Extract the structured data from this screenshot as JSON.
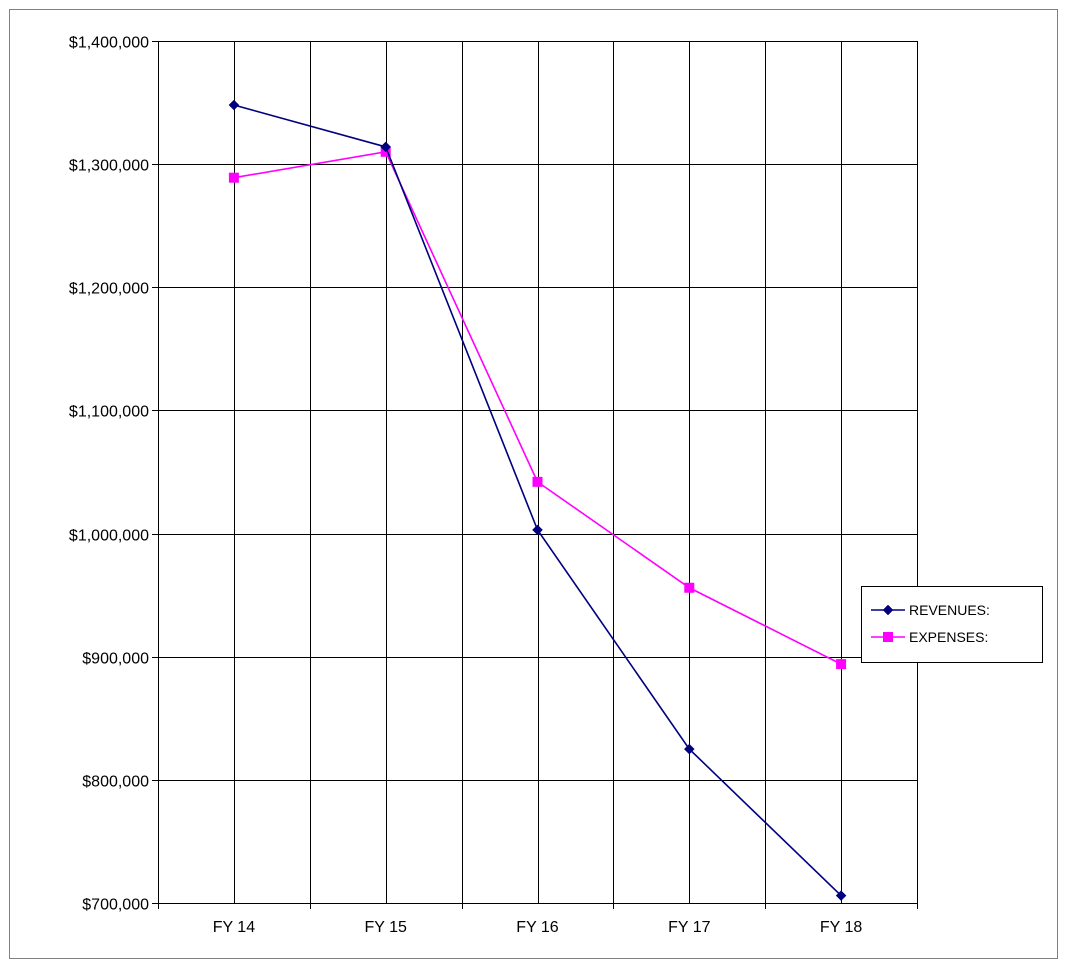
{
  "chart_data": {
    "type": "line",
    "title": "",
    "xlabel": "",
    "ylabel": "",
    "categories": [
      "FY 14",
      "FY 15",
      "FY 16",
      "FY 17",
      "FY 18"
    ],
    "ylim": [
      700000,
      1400000
    ],
    "yticks": [
      700000,
      800000,
      900000,
      1000000,
      1100000,
      1200000,
      1300000,
      1400000
    ],
    "ytick_labels": [
      "$700,000",
      "$800,000",
      "$900,000",
      "$1,000,000",
      "$1,100,000",
      "$1,200,000",
      "$1,300,000",
      "$1,400,000"
    ],
    "grid": true,
    "legend_position": "right",
    "series": [
      {
        "name": "REVENUES:",
        "values": [
          1348000,
          1314000,
          1003000,
          825000,
          706000
        ],
        "color": "#000080",
        "marker": "diamond"
      },
      {
        "name": "EXPENSES:",
        "values": [
          1289000,
          1310000,
          1042000,
          956000,
          894000
        ],
        "color": "#FF00FF",
        "marker": "square"
      }
    ]
  }
}
